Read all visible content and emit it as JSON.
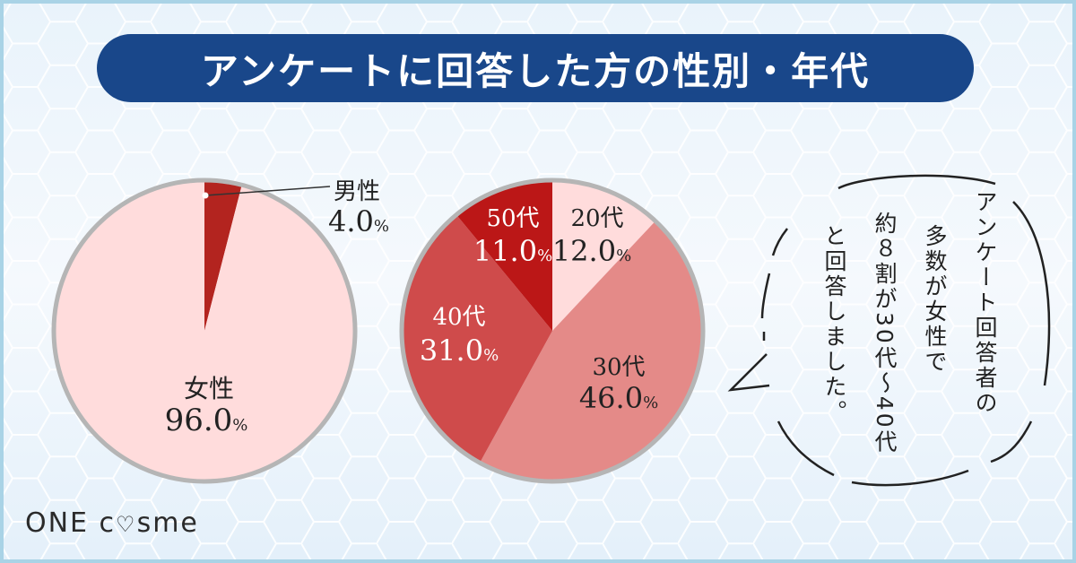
{
  "title": "アンケートに回答した方の性別・年代",
  "chart_data": [
    {
      "type": "pie",
      "slices": [
        {
          "label": "男性",
          "value": 4.0,
          "value_text": "4.0",
          "color": "#b3241f"
        },
        {
          "label": "女性",
          "value": 96.0,
          "value_text": "96.0",
          "color": "#ffdcdc"
        }
      ],
      "unit": "%"
    },
    {
      "type": "pie",
      "slices": [
        {
          "label": "20代",
          "value": 12.0,
          "value_text": "12.0",
          "color": "#ffdcdc"
        },
        {
          "label": "30代",
          "value": 46.0,
          "value_text": "46.0",
          "color": "#e48a88"
        },
        {
          "label": "40代",
          "value": 31.0,
          "value_text": "31.0",
          "color": "#cf4b4b"
        },
        {
          "label": "50代",
          "value": 11.0,
          "value_text": "11.0",
          "color": "#bb1717"
        }
      ],
      "unit": "%"
    }
  ],
  "speech_bubble": {
    "lines": [
      "アンケート回答者の",
      "多数が女性で",
      "約８割が30代～40代",
      "と回答しました。"
    ]
  },
  "logo": {
    "text_before": "ONE c",
    "text_after": "sme"
  },
  "colors": {
    "title_bg": "#19478a",
    "frame": "#a9d3e6"
  }
}
